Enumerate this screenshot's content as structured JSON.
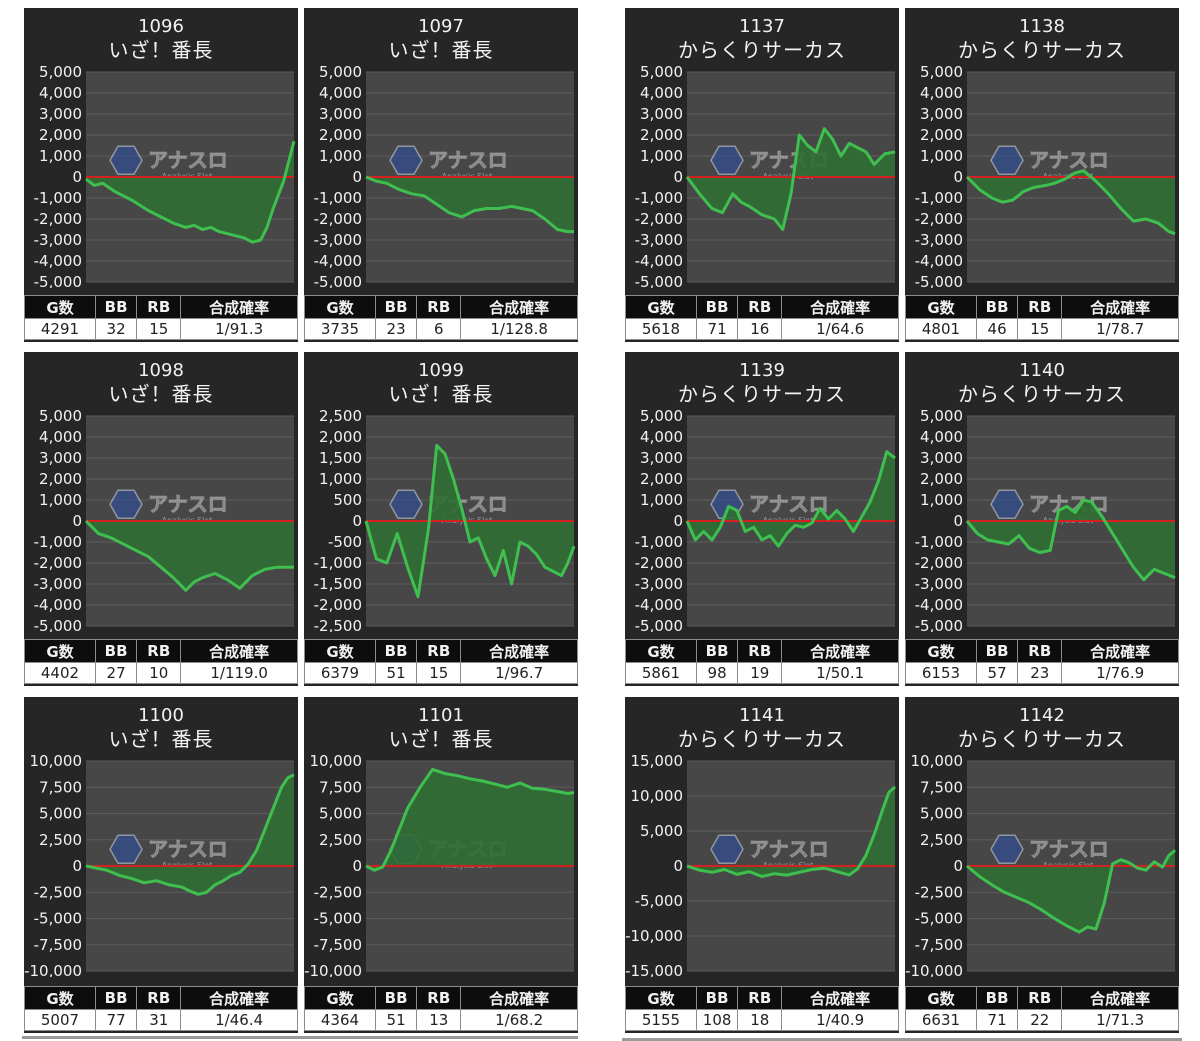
{
  "colors": {
    "panel_bg": "#262626",
    "plot_bg": "#474747",
    "grid": "#5c5c5c",
    "zero_line": "#d42020",
    "series_line": "#3fbf4f",
    "series_fill": "#2f6e33",
    "axis_text": "#f2f2f2",
    "table_header_bg": "#0d0d0d",
    "table_cell_bg": "#ffffff"
  },
  "table_headers": {
    "games": "G数",
    "bb": "BB",
    "rb": "RB",
    "rate": "合成確率"
  },
  "watermark": {
    "brand": "アナスロ",
    "sub": "--Analysis Slot--",
    "icon": "hexagon-logo-icon"
  },
  "charts": [
    {
      "machine": "1096",
      "name": "いざ！番長",
      "stats": {
        "games": "4291",
        "bb": "32",
        "rb": "15",
        "rate": "1/91.3"
      },
      "chart_data": {
        "type": "area",
        "x_range": [
          0,
          1
        ],
        "ylim": [
          -5000,
          5000
        ],
        "yticks": [
          "5,000",
          "4,000",
          "3,000",
          "2,000",
          "1,000",
          "0",
          "-1,000",
          "-2,000",
          "-3,000",
          "-4,000",
          "-5,000"
        ],
        "x": [
          0,
          0.04,
          0.08,
          0.14,
          0.22,
          0.3,
          0.36,
          0.42,
          0.48,
          0.52,
          0.56,
          0.6,
          0.64,
          0.68,
          0.72,
          0.76,
          0.8,
          0.84,
          0.87,
          0.9,
          0.95,
          1.0
        ],
        "values": [
          -100,
          -400,
          -300,
          -700,
          -1100,
          -1600,
          -1900,
          -2200,
          -2400,
          -2300,
          -2500,
          -2400,
          -2600,
          -2700,
          -2800,
          -2900,
          -3100,
          -3000,
          -2400,
          -1500,
          -200,
          1700
        ]
      }
    },
    {
      "machine": "1097",
      "name": "いざ！番長",
      "stats": {
        "games": "3735",
        "bb": "23",
        "rb": "6",
        "rate": "1/128.8"
      },
      "chart_data": {
        "type": "area",
        "x_range": [
          0,
          1
        ],
        "ylim": [
          -5000,
          5000
        ],
        "yticks": [
          "5,000",
          "4,000",
          "3,000",
          "2,000",
          "1,000",
          "0",
          "-1,000",
          "-2,000",
          "-3,000",
          "-4,000",
          "-5,000"
        ],
        "x": [
          0,
          0.05,
          0.1,
          0.16,
          0.22,
          0.28,
          0.34,
          0.4,
          0.46,
          0.52,
          0.58,
          0.64,
          0.7,
          0.75,
          0.8,
          0.86,
          0.92,
          0.97,
          1.0
        ],
        "values": [
          0,
          -200,
          -300,
          -600,
          -800,
          -900,
          -1300,
          -1700,
          -1900,
          -1600,
          -1500,
          -1500,
          -1400,
          -1500,
          -1600,
          -2000,
          -2500,
          -2600,
          -2600
        ]
      }
    },
    {
      "machine": "1137",
      "name": "からくりサーカス",
      "stats": {
        "games": "5618",
        "bb": "71",
        "rb": "16",
        "rate": "1/64.6"
      },
      "chart_data": {
        "type": "area",
        "x_range": [
          0,
          1
        ],
        "ylim": [
          -5000,
          5000
        ],
        "yticks": [
          "5,000",
          "4,000",
          "3,000",
          "2,000",
          "1,000",
          "0",
          "-1,000",
          "-2,000",
          "-3,000",
          "-4,000",
          "-5,000"
        ],
        "x": [
          0,
          0.06,
          0.12,
          0.17,
          0.22,
          0.26,
          0.3,
          0.36,
          0.42,
          0.46,
          0.5,
          0.54,
          0.58,
          0.62,
          0.66,
          0.7,
          0.74,
          0.78,
          0.82,
          0.86,
          0.9,
          0.95,
          1.0
        ],
        "values": [
          0,
          -800,
          -1500,
          -1700,
          -800,
          -1200,
          -1400,
          -1800,
          -2000,
          -2500,
          -800,
          2000,
          1500,
          1200,
          2300,
          1800,
          1000,
          1600,
          1400,
          1200,
          600,
          1100,
          1200
        ]
      }
    },
    {
      "machine": "1138",
      "name": "からくりサーカス",
      "stats": {
        "games": "4801",
        "bb": "46",
        "rb": "15",
        "rate": "1/78.7"
      },
      "chart_data": {
        "type": "area",
        "x_range": [
          0,
          1
        ],
        "ylim": [
          -5000,
          5000
        ],
        "yticks": [
          "5,000",
          "4,000",
          "3,000",
          "2,000",
          "1,000",
          "0",
          "-1,000",
          "-2,000",
          "-3,000",
          "-4,000",
          "-5,000"
        ],
        "x": [
          0,
          0.06,
          0.12,
          0.17,
          0.22,
          0.27,
          0.32,
          0.38,
          0.42,
          0.47,
          0.52,
          0.56,
          0.62,
          0.68,
          0.74,
          0.8,
          0.86,
          0.92,
          0.97,
          1.0
        ],
        "values": [
          0,
          -600,
          -1000,
          -1200,
          -1100,
          -700,
          -500,
          -400,
          -300,
          -100,
          200,
          300,
          -200,
          -800,
          -1500,
          -2100,
          -2000,
          -2200,
          -2600,
          -2700
        ]
      }
    },
    {
      "machine": "1098",
      "name": "いざ！番長",
      "stats": {
        "games": "4402",
        "bb": "27",
        "rb": "10",
        "rate": "1/119.0"
      },
      "chart_data": {
        "type": "area",
        "x_range": [
          0,
          1
        ],
        "ylim": [
          -5000,
          5000
        ],
        "yticks": [
          "5,000",
          "4,000",
          "3,000",
          "2,000",
          "1,000",
          "0",
          "-1,000",
          "-2,000",
          "-3,000",
          "-4,000",
          "-5,000"
        ],
        "x": [
          0,
          0.06,
          0.12,
          0.18,
          0.24,
          0.3,
          0.36,
          0.42,
          0.48,
          0.52,
          0.56,
          0.62,
          0.68,
          0.74,
          0.8,
          0.86,
          0.92,
          1.0
        ],
        "values": [
          0,
          -600,
          -800,
          -1100,
          -1400,
          -1700,
          -2200,
          -2700,
          -3300,
          -2900,
          -2700,
          -2500,
          -2800,
          -3200,
          -2600,
          -2300,
          -2200,
          -2200
        ]
      }
    },
    {
      "machine": "1099",
      "name": "いざ！番長",
      "stats": {
        "games": "6379",
        "bb": "51",
        "rb": "15",
        "rate": "1/96.7"
      },
      "chart_data": {
        "type": "area",
        "x_range": [
          0,
          1
        ],
        "ylim": [
          -2500,
          2500
        ],
        "yticks": [
          "2,500",
          "2,000",
          "1,500",
          "1,000",
          "500",
          "0",
          "-500",
          "-1,000",
          "-1,500",
          "-2,000",
          "-2,500"
        ],
        "x": [
          0,
          0.05,
          0.1,
          0.15,
          0.2,
          0.25,
          0.3,
          0.34,
          0.38,
          0.42,
          0.46,
          0.5,
          0.54,
          0.58,
          0.62,
          0.66,
          0.7,
          0.74,
          0.78,
          0.82,
          0.86,
          0.9,
          0.94,
          0.97,
          1.0
        ],
        "values": [
          0,
          -900,
          -1000,
          -300,
          -1100,
          -1800,
          -200,
          1800,
          1600,
          1000,
          300,
          -500,
          -400,
          -900,
          -1300,
          -700,
          -1500,
          -500,
          -600,
          -800,
          -1100,
          -1200,
          -1300,
          -1000,
          -600
        ]
      }
    },
    {
      "machine": "1139",
      "name": "からくりサーカス",
      "stats": {
        "games": "5861",
        "bb": "98",
        "rb": "19",
        "rate": "1/50.1"
      },
      "chart_data": {
        "type": "area",
        "x_range": [
          0,
          1
        ],
        "ylim": [
          -5000,
          5000
        ],
        "yticks": [
          "5,000",
          "4,000",
          "3,000",
          "2,000",
          "1,000",
          "0",
          "-1,000",
          "-2,000",
          "-3,000",
          "-4,000",
          "-5,000"
        ],
        "x": [
          0,
          0.04,
          0.08,
          0.12,
          0.16,
          0.2,
          0.24,
          0.28,
          0.32,
          0.36,
          0.4,
          0.44,
          0.48,
          0.52,
          0.56,
          0.6,
          0.64,
          0.68,
          0.72,
          0.76,
          0.8,
          0.84,
          0.88,
          0.92,
          0.96,
          1.0
        ],
        "values": [
          0,
          -900,
          -500,
          -900,
          -300,
          700,
          500,
          -500,
          -300,
          -900,
          -700,
          -1200,
          -600,
          -200,
          -300,
          -100,
          600,
          100,
          500,
          100,
          -500,
          200,
          900,
          1900,
          3300,
          3000
        ]
      }
    },
    {
      "machine": "1140",
      "name": "からくりサーカス",
      "stats": {
        "games": "6153",
        "bb": "57",
        "rb": "23",
        "rate": "1/76.9"
      },
      "chart_data": {
        "type": "area",
        "x_range": [
          0,
          1
        ],
        "ylim": [
          -5000,
          5000
        ],
        "yticks": [
          "5,000",
          "4,000",
          "3,000",
          "2,000",
          "1,000",
          "0",
          "-1,000",
          "-2,000",
          "-3,000",
          "-4,000",
          "-5,000"
        ],
        "x": [
          0,
          0.05,
          0.1,
          0.15,
          0.2,
          0.25,
          0.3,
          0.35,
          0.4,
          0.44,
          0.48,
          0.52,
          0.56,
          0.6,
          0.65,
          0.7,
          0.75,
          0.8,
          0.85,
          0.9,
          0.95,
          1.0
        ],
        "values": [
          0,
          -600,
          -900,
          -1000,
          -1100,
          -700,
          -1300,
          -1500,
          -1400,
          500,
          700,
          400,
          1000,
          900,
          200,
          -600,
          -1400,
          -2200,
          -2800,
          -2300,
          -2500,
          -2700
        ]
      }
    },
    {
      "machine": "1100",
      "name": "いざ！番長",
      "stats": {
        "games": "5007",
        "bb": "77",
        "rb": "31",
        "rate": "1/46.4"
      },
      "chart_data": {
        "type": "area",
        "x_range": [
          0,
          1
        ],
        "ylim": [
          -10000,
          10000
        ],
        "yticks": [
          "10,000",
          "7,500",
          "5,000",
          "2,500",
          "0",
          "-2,500",
          "-5,000",
          "-7,500",
          "-10,000"
        ],
        "x": [
          0,
          0.05,
          0.1,
          0.16,
          0.22,
          0.28,
          0.34,
          0.4,
          0.46,
          0.5,
          0.54,
          0.58,
          0.62,
          0.66,
          0.7,
          0.74,
          0.78,
          0.82,
          0.86,
          0.9,
          0.94,
          0.97,
          1.0
        ],
        "values": [
          0,
          -200,
          -400,
          -900,
          -1200,
          -1600,
          -1400,
          -1800,
          -2000,
          -2400,
          -2700,
          -2500,
          -1800,
          -1400,
          -900,
          -600,
          200,
          1500,
          3500,
          5500,
          7500,
          8400,
          8700
        ]
      }
    },
    {
      "machine": "1101",
      "name": "いざ！番長",
      "stats": {
        "games": "4364",
        "bb": "51",
        "rb": "13",
        "rate": "1/68.2"
      },
      "chart_data": {
        "type": "area",
        "x_range": [
          0,
          1
        ],
        "ylim": [
          -10000,
          10000
        ],
        "yticks": [
          "10,000",
          "7,500",
          "5,000",
          "2,500",
          "0",
          "-2,500",
          "-5,000",
          "-7,500",
          "-10,000"
        ],
        "x": [
          0,
          0.04,
          0.08,
          0.12,
          0.16,
          0.2,
          0.26,
          0.32,
          0.38,
          0.44,
          0.5,
          0.56,
          0.62,
          0.68,
          0.74,
          0.8,
          0.86,
          0.92,
          0.97,
          1.0
        ],
        "values": [
          0,
          -400,
          -100,
          1500,
          3500,
          5500,
          7500,
          9200,
          8800,
          8600,
          8300,
          8100,
          7800,
          7500,
          7900,
          7400,
          7300,
          7100,
          6900,
          7000
        ]
      }
    },
    {
      "machine": "1141",
      "name": "からくりサーカス",
      "stats": {
        "games": "5155",
        "bb": "108",
        "rb": "18",
        "rate": "1/40.9"
      },
      "chart_data": {
        "type": "area",
        "x_range": [
          0,
          1
        ],
        "ylim": [
          -15000,
          15000
        ],
        "yticks": [
          "15,000",
          "10,000",
          "5,000",
          "0",
          "-5,000",
          "-10,000",
          "-15,000"
        ],
        "x": [
          0,
          0.06,
          0.12,
          0.18,
          0.24,
          0.3,
          0.36,
          0.42,
          0.48,
          0.54,
          0.6,
          0.66,
          0.72,
          0.78,
          0.82,
          0.86,
          0.9,
          0.94,
          0.97,
          1.0
        ],
        "values": [
          0,
          -600,
          -900,
          -500,
          -1200,
          -800,
          -1500,
          -1100,
          -1300,
          -900,
          -500,
          -300,
          -800,
          -1300,
          -400,
          1500,
          4500,
          8000,
          10500,
          11300
        ]
      }
    },
    {
      "machine": "1142",
      "name": "からくりサーカス",
      "stats": {
        "games": "6631",
        "bb": "71",
        "rb": "22",
        "rate": "1/71.3"
      },
      "chart_data": {
        "type": "area",
        "x_range": [
          0,
          1
        ],
        "ylim": [
          -10000,
          10000
        ],
        "yticks": [
          "10,000",
          "7,500",
          "5,000",
          "2,500",
          "0",
          "-2,500",
          "-5,000",
          "-7,500",
          "-10,000"
        ],
        "x": [
          0,
          0.06,
          0.12,
          0.18,
          0.24,
          0.3,
          0.36,
          0.42,
          0.48,
          0.54,
          0.58,
          0.62,
          0.66,
          0.7,
          0.74,
          0.78,
          0.82,
          0.86,
          0.9,
          0.94,
          0.97,
          1.0
        ],
        "values": [
          0,
          -1000,
          -1800,
          -2500,
          -3000,
          -3500,
          -4200,
          -5000,
          -5700,
          -6300,
          -5800,
          -6000,
          -3500,
          200,
          600,
          300,
          -200,
          -400,
          400,
          -100,
          1000,
          1500
        ]
      }
    }
  ]
}
